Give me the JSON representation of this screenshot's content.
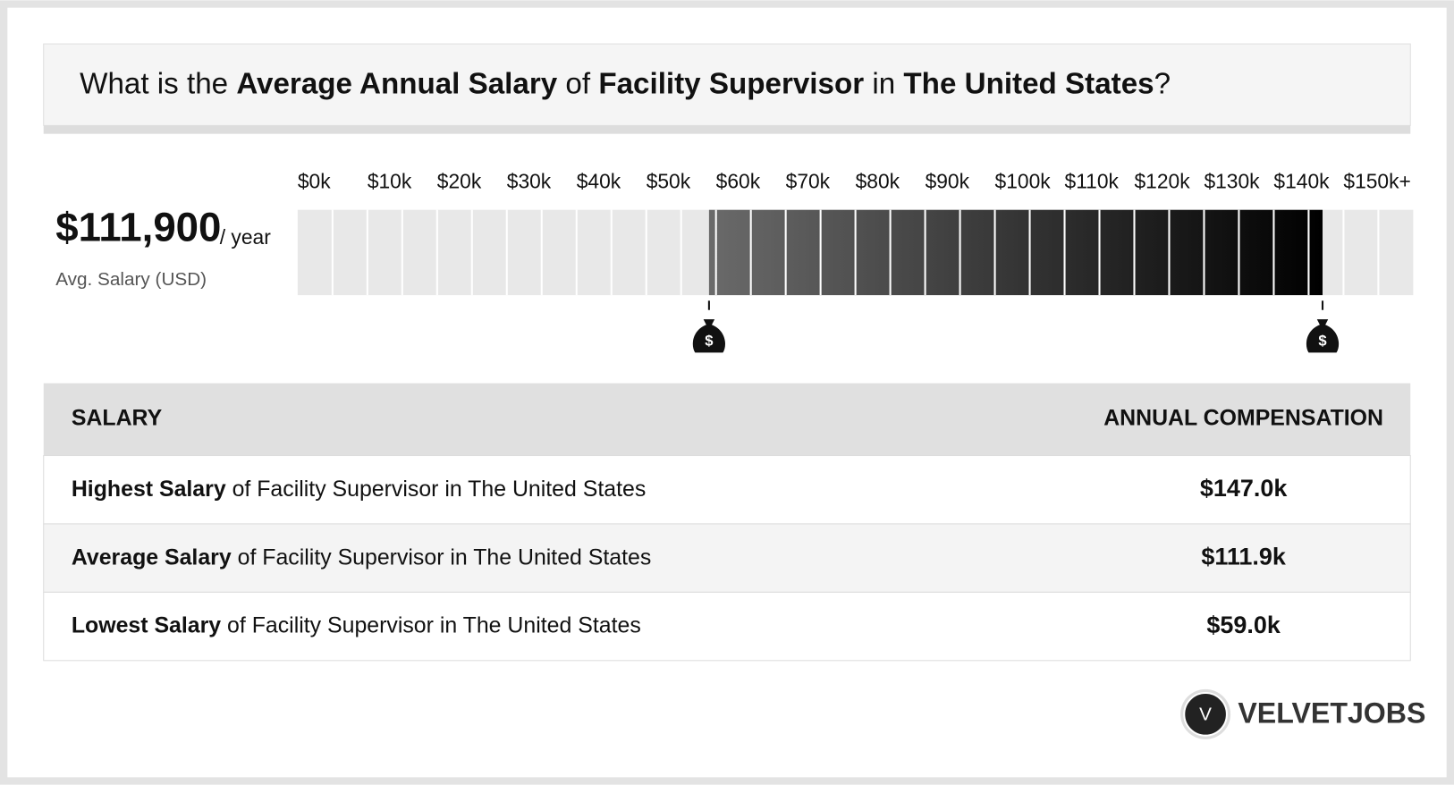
{
  "header": {
    "title": [
      {
        "text": "What is the ",
        "bold": false
      },
      {
        "text": "Average Annual Salary",
        "bold": true
      },
      {
        "text": " of ",
        "bold": false
      },
      {
        "text": "Facility Supervisor",
        "bold": true
      },
      {
        "text": " in ",
        "bold": false
      },
      {
        "text": "The United States",
        "bold": true
      },
      {
        "text": "?",
        "bold": false
      }
    ]
  },
  "summary": {
    "amount": "$111,900",
    "unit": "/ year",
    "caption": "Avg. Salary (USD)"
  },
  "salary_range": {
    "low": 59,
    "high": 147,
    "xlim": [
      0,
      160
    ],
    "xticks": [
      {
        "value": 0,
        "label": "$0k"
      },
      {
        "value": 10,
        "label": "$10k"
      },
      {
        "value": 20,
        "label": "$20k"
      },
      {
        "value": 30,
        "label": "$30k"
      },
      {
        "value": 40,
        "label": "$40k"
      },
      {
        "value": 50,
        "label": "$50k"
      },
      {
        "value": 60,
        "label": "$60k"
      },
      {
        "value": 70,
        "label": "$70k"
      },
      {
        "value": 80,
        "label": "$80k"
      },
      {
        "value": 90,
        "label": "$90k"
      },
      {
        "value": 100,
        "label": "$100k"
      },
      {
        "value": 110,
        "label": "$110k"
      },
      {
        "value": 120,
        "label": "$120k"
      },
      {
        "value": 130,
        "label": "$130k"
      },
      {
        "value": 140,
        "label": "$140k"
      },
      {
        "value": 150,
        "label": "$150k+"
      }
    ],
    "marker_symbol": "$"
  },
  "table": {
    "header": [
      "SALARY",
      "ANNUAL COMPENSATION"
    ],
    "rows": [
      {
        "label_bold": "Highest Salary",
        "label_rest": " of Facility Supervisor in The United States",
        "value": "$147.0k"
      },
      {
        "label_bold": "Average Salary",
        "label_rest": " of Facility Supervisor in The United States",
        "value": "$111.9k"
      },
      {
        "label_bold": "Lowest Salary",
        "label_rest": " of Facility Supervisor in The United States",
        "value": "$59.0k"
      }
    ]
  },
  "logo": {
    "mark": "V",
    "name": "VELVETJOBS"
  }
}
